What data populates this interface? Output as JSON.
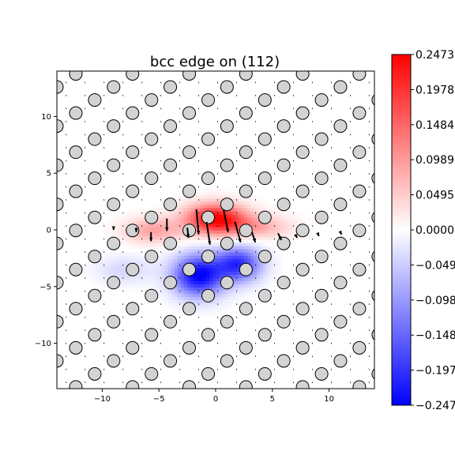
{
  "chart_data": {
    "type": "heatmap",
    "title": "bcc edge on (112)",
    "xlabel": "",
    "ylabel": "",
    "xlim": [
      -14,
      14
    ],
    "ylim": [
      -14,
      14
    ],
    "xticks": [
      -10,
      -5,
      0,
      5,
      10
    ],
    "yticks": [
      -10,
      -5,
      0,
      5,
      10
    ],
    "colormap": "bwr",
    "colors": {
      "min": "#0000ff",
      "mid": "#ffffff",
      "max": "#ff0000"
    },
    "colorbar": {
      "min": -0.2473,
      "max": 0.2473,
      "tick_values": [
        0.2473,
        0.1978,
        0.1484,
        0.0989,
        0.0495,
        0.0,
        -0.0495,
        -0.0989,
        -0.1484,
        -0.1978,
        -0.2473
      ],
      "tick_labels": [
        "0.2473",
        "0.1978",
        "0.1484",
        "0.0989",
        "0.0495",
        "0.0000",
        "−0.0495",
        "−0.0989",
        "−0.1484",
        "−0.1978",
        "−0.2473"
      ]
    },
    "atom_lattice": {
      "row_spacing": 1.15,
      "column_spacing": 5.0,
      "row_shift": 1.67,
      "marker": "circle",
      "fill": "#d3d3d3",
      "edge": "#000000"
    },
    "strain_lobes": [
      {
        "x": 0,
        "y": 1.0,
        "sx": 2.6,
        "sy": 1.3,
        "amp": 0.2473
      },
      {
        "x": -5.5,
        "y": 0,
        "sx": 2.5,
        "sy": 1.1,
        "amp": 0.09
      },
      {
        "x": 3.5,
        "y": 0.3,
        "sx": 3.0,
        "sy": 1.0,
        "amp": 0.08
      },
      {
        "x": -1.5,
        "y": -4.0,
        "sx": 2.2,
        "sy": 1.8,
        "amp": -0.2473
      },
      {
        "x": 2.0,
        "y": -3.0,
        "sx": 2.0,
        "sy": 1.5,
        "amp": -0.2
      },
      {
        "x": -8,
        "y": -3.5,
        "sx": 2.5,
        "sy": 1.2,
        "amp": -0.04
      }
    ],
    "displacement_arrows": [
      {
        "x": -1.7,
        "y": 1.8,
        "dx": 0.2,
        "dy": -2.2
      },
      {
        "x": -0.8,
        "y": 0.7,
        "dx": 0.3,
        "dy": -2.0
      },
      {
        "x": 0.7,
        "y": 1.8,
        "dx": 0.4,
        "dy": -2.0
      },
      {
        "x": 1.7,
        "y": 0.7,
        "dx": 0.5,
        "dy": -1.8
      },
      {
        "x": -4.3,
        "y": 1.0,
        "dx": 0.0,
        "dy": -1.1
      },
      {
        "x": -5.7,
        "y": -0.2,
        "dx": 0.0,
        "dy": -0.8
      },
      {
        "x": -2.5,
        "y": 0.2,
        "dx": 0.1,
        "dy": -0.9
      },
      {
        "x": 3.2,
        "y": -0.2,
        "dx": 0.3,
        "dy": -0.9
      },
      {
        "x": 5.5,
        "y": -0.3,
        "dx": 0.3,
        "dy": -0.6
      },
      {
        "x": 7.0,
        "y": -0.4,
        "dx": 0.2,
        "dy": -0.3
      },
      {
        "x": -7.0,
        "y": 0.2,
        "dx": 0.0,
        "dy": -0.4
      },
      {
        "x": -9.0,
        "y": 0.3,
        "dx": 0.0,
        "dy": -0.3
      },
      {
        "x": 9.0,
        "y": -0.3,
        "dx": 0.1,
        "dy": -0.25
      },
      {
        "x": 11.0,
        "y": -0.2,
        "dx": 0.1,
        "dy": -0.2
      }
    ]
  }
}
